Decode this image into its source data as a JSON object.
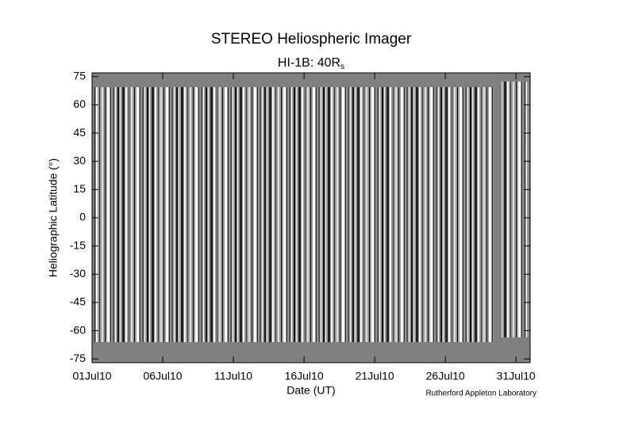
{
  "chart_data": {
    "type": "image",
    "title": "STEREO Heliospheric Imager",
    "subtitle": {
      "text": "HI-1B: 40R",
      "subscript": "s"
    },
    "xlabel": "Date (UT)",
    "ylabel": "Heliographic Latitude (°)",
    "credit": "Rutherford Appleton Laboratory",
    "xlim": [
      "2010-07-01",
      "2010-08-01"
    ],
    "xticks": [
      {
        "value": "2010-07-01",
        "label": "01Jul10"
      },
      {
        "value": "2010-07-06",
        "label": "06Jul10"
      },
      {
        "value": "2010-07-11",
        "label": "11Jul10"
      },
      {
        "value": "2010-07-16",
        "label": "16Jul10"
      },
      {
        "value": "2010-07-21",
        "label": "21Jul10"
      },
      {
        "value": "2010-07-26",
        "label": "26Jul10"
      },
      {
        "value": "2010-07-31",
        "label": "31Jul10"
      }
    ],
    "ylim": [
      -77,
      77
    ],
    "yticks": [
      -75,
      -60,
      -45,
      -30,
      -15,
      0,
      15,
      30,
      45,
      60,
      75
    ]
  }
}
